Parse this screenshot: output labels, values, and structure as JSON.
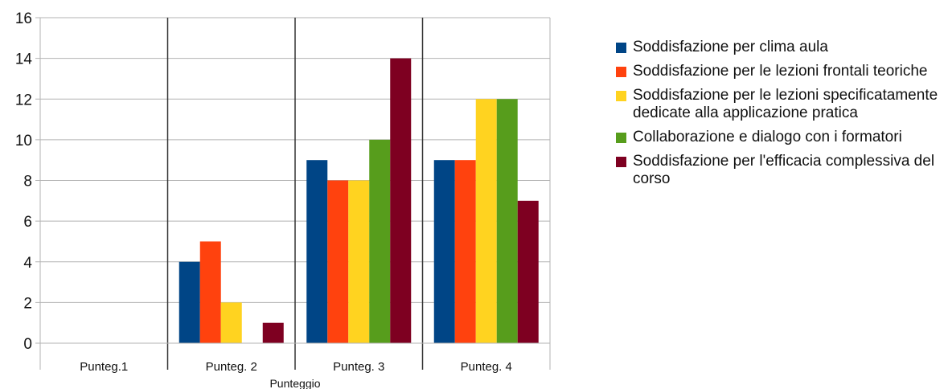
{
  "chart_data": {
    "type": "bar",
    "title": "",
    "xlabel": "Punteggio",
    "ylabel": "",
    "ylim": [
      0,
      16
    ],
    "yticks": [
      "0",
      "2",
      "4",
      "6",
      "8",
      "10",
      "12",
      "14",
      "16"
    ],
    "grid": true,
    "legend_position": "right",
    "categories": [
      "Punteg.1",
      "Punteg. 2",
      "Punteg. 3",
      "Punteg. 4"
    ],
    "series": [
      {
        "name": "Soddisfazione per clima aula",
        "color": "#004586",
        "values": [
          0,
          4,
          9,
          9
        ]
      },
      {
        "name": "Soddisfazione per le lezioni frontali teoriche",
        "color": "#ff420e",
        "values": [
          0,
          5,
          8,
          9
        ]
      },
      {
        "name": "Soddisfazione per le lezioni specificatamente dedicate alla applicazione pratica",
        "color": "#ffd320",
        "values": [
          0,
          2,
          8,
          12
        ]
      },
      {
        "name": "Collaborazione e dialogo con i formatori",
        "color": "#579d1c",
        "values": [
          0,
          0,
          10,
          12
        ]
      },
      {
        "name": "Soddisfazione per l'efficacia complessiva del corso",
        "color": "#7e0021",
        "values": [
          0,
          1,
          14,
          7
        ]
      }
    ]
  }
}
